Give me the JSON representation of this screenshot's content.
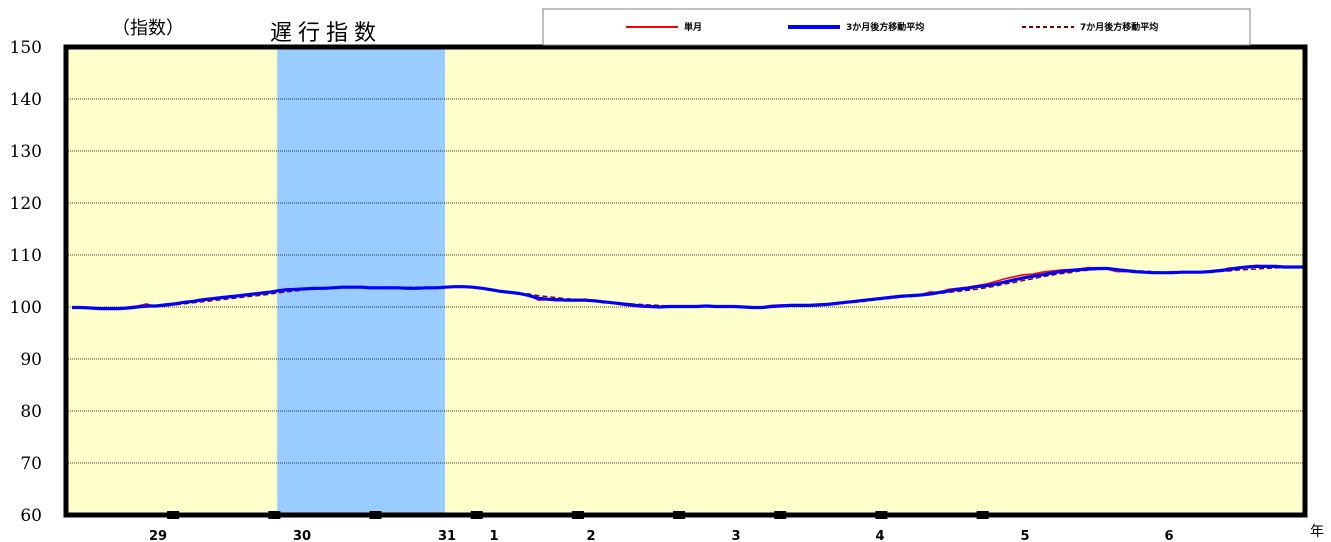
{
  "chart_data": {
    "type": "line",
    "title": "遅行指数",
    "ylabel": "（指数）",
    "xunit": "年",
    "ylim": [
      60,
      150
    ],
    "yticks": [
      "150",
      "140",
      "130",
      "120",
      "110",
      "100",
      "90",
      "80",
      "70",
      "60"
    ],
    "year_labels": [
      "29",
      "30",
      "31",
      "1",
      "2",
      "3",
      "4",
      "5",
      "6"
    ],
    "grid": true,
    "legend_position": "top",
    "colors": {
      "plot_bg": "#ffffcc",
      "recession": "#99ccff",
      "single": "#ff0000",
      "ma3": "#0000ff",
      "ma7": "#800000"
    },
    "recession_shading": [
      {
        "start_month_index": 22,
        "end_month_index": 40
      }
    ],
    "series": [
      {
        "name": "単月",
        "style": "solid",
        "values": [
          100,
          100,
          99.8,
          99.8,
          99.7,
          99.8,
          100,
          100.2,
          100.6,
          100.1,
          100.2,
          100.5,
          100.8,
          101,
          101.2,
          101.5,
          101.7,
          101.9,
          102.1,
          102.3,
          102.4,
          102.8,
          103.1,
          103.5,
          103.3,
          103.4,
          103.6,
          103.6,
          103.7,
          103.8,
          103.9,
          103.9,
          103.7,
          103.6,
          103.8,
          103.7,
          103.6,
          103.6,
          103.6,
          103.7,
          103.8,
          103.9,
          104,
          103.8,
          103.5,
          103.3,
          103,
          102.8,
          102.5,
          102.3,
          101.3,
          101.4,
          101.2,
          101.3,
          101.4,
          101.5,
          101.2,
          100.8,
          100.8,
          100.4,
          100.2,
          100,
          100,
          99.9,
          100.2,
          100.1,
          100.2,
          100.1,
          100.3,
          100.1,
          100.1,
          100,
          99.9,
          99.9,
          100,
          100.3,
          100.4,
          100.4,
          100.2,
          100.3,
          100.4,
          100.5,
          100.7,
          100.9,
          101.1,
          101.3,
          101.5,
          101.8,
          102,
          102.2,
          102.3,
          102.3,
          102.9,
          102.8,
          103.4,
          103.6,
          103.8,
          104.1,
          104.4,
          104.9,
          105.4,
          105.8,
          106.2,
          106.3,
          106.7,
          106.9,
          107.1,
          107.2,
          107.3,
          107.6,
          107.5,
          107.3,
          106.8,
          106.8,
          106.8,
          106.6,
          106.6,
          106.6,
          106.8,
          106.7,
          106.6,
          106.7,
          106.7,
          106.9,
          107.5,
          107.6,
          107.8,
          108,
          107.9,
          107.7,
          107.7,
          107.7,
          107.7
        ]
      },
      {
        "name": "3か月後方移動平均",
        "style": "solid",
        "values": [
          99.9,
          99.9,
          99.8,
          99.7,
          99.7,
          99.7,
          99.8,
          100,
          100.2,
          100.2,
          100.4,
          100.6,
          100.9,
          101.1,
          101.4,
          101.6,
          101.8,
          102,
          102.2,
          102.4,
          102.6,
          102.8,
          103.1,
          103.3,
          103.4,
          103.5,
          103.6,
          103.6,
          103.7,
          103.8,
          103.8,
          103.8,
          103.7,
          103.7,
          103.7,
          103.7,
          103.6,
          103.6,
          103.7,
          103.7,
          103.8,
          103.9,
          103.9,
          103.8,
          103.6,
          103.3,
          103,
          102.8,
          102.6,
          102.2,
          101.7,
          101.5,
          101.4,
          101.3,
          101.3,
          101.3,
          101.2,
          101,
          100.8,
          100.6,
          100.4,
          100.2,
          100.1,
          100,
          100.1,
          100.1,
          100.1,
          100.1,
          100.2,
          100.1,
          100.1,
          100.1,
          100,
          99.9,
          99.9,
          100.1,
          100.2,
          100.3,
          100.3,
          100.3,
          100.4,
          100.5,
          100.7,
          100.9,
          101.1,
          101.3,
          101.5,
          101.7,
          101.9,
          102.1,
          102.2,
          102.3,
          102.5,
          102.8,
          103.1,
          103.4,
          103.6,
          103.9,
          104.1,
          104.4,
          104.8,
          105.2,
          105.6,
          105.9,
          106.2,
          106.5,
          106.8,
          107,
          107.2,
          107.3,
          107.4,
          107.4,
          107.2,
          107,
          106.8,
          106.7,
          106.6,
          106.6,
          106.6,
          106.7,
          106.7,
          106.7,
          106.8,
          107,
          107.2,
          107.5,
          107.7,
          107.8,
          107.8,
          107.8,
          107.7,
          107.7,
          107.7
        ]
      },
      {
        "name": "7か月後方移動平均",
        "style": "dashed",
        "values": [
          99.8,
          99.8,
          99.8,
          99.7,
          99.7,
          99.7,
          99.8,
          99.9,
          100,
          100.1,
          100.2,
          100.4,
          100.6,
          100.8,
          101,
          101.2,
          101.4,
          101.6,
          101.8,
          102,
          102.2,
          102.4,
          102.7,
          102.9,
          103.1,
          103.3,
          103.4,
          103.5,
          103.6,
          103.7,
          103.7,
          103.8,
          103.8,
          103.8,
          103.8,
          103.8,
          103.8,
          103.8,
          103.8,
          103.8,
          103.8,
          103.8,
          103.8,
          103.7,
          103.5,
          103.3,
          103.1,
          102.9,
          102.7,
          102.5,
          102.2,
          102,
          101.8,
          101.6,
          101.5,
          101.3,
          101.2,
          101.1,
          100.9,
          100.7,
          100.6,
          100.5,
          100.4,
          100.3,
          100.2,
          100.2,
          100.1,
          100.1,
          100.1,
          100.1,
          100.1,
          100,
          100,
          100,
          100,
          100.1,
          100.2,
          100.2,
          100.3,
          100.3,
          100.4,
          100.5,
          100.6,
          100.8,
          100.9,
          101.1,
          101.3,
          101.5,
          101.7,
          101.9,
          102,
          102.2,
          102.4,
          102.6,
          102.8,
          103,
          103.2,
          103.4,
          103.7,
          104,
          104.4,
          104.7,
          105.1,
          105.4,
          105.8,
          106.1,
          106.4,
          106.6,
          106.9,
          107.1,
          107.2,
          107.3,
          107.2,
          107.1,
          107,
          106.9,
          106.8,
          106.7,
          106.7,
          106.6,
          106.6,
          106.7,
          106.7,
          106.8,
          106.9,
          107.1,
          107.2,
          107.3,
          107.4,
          107.5,
          107.6,
          107.6,
          107.7
        ]
      }
    ]
  }
}
